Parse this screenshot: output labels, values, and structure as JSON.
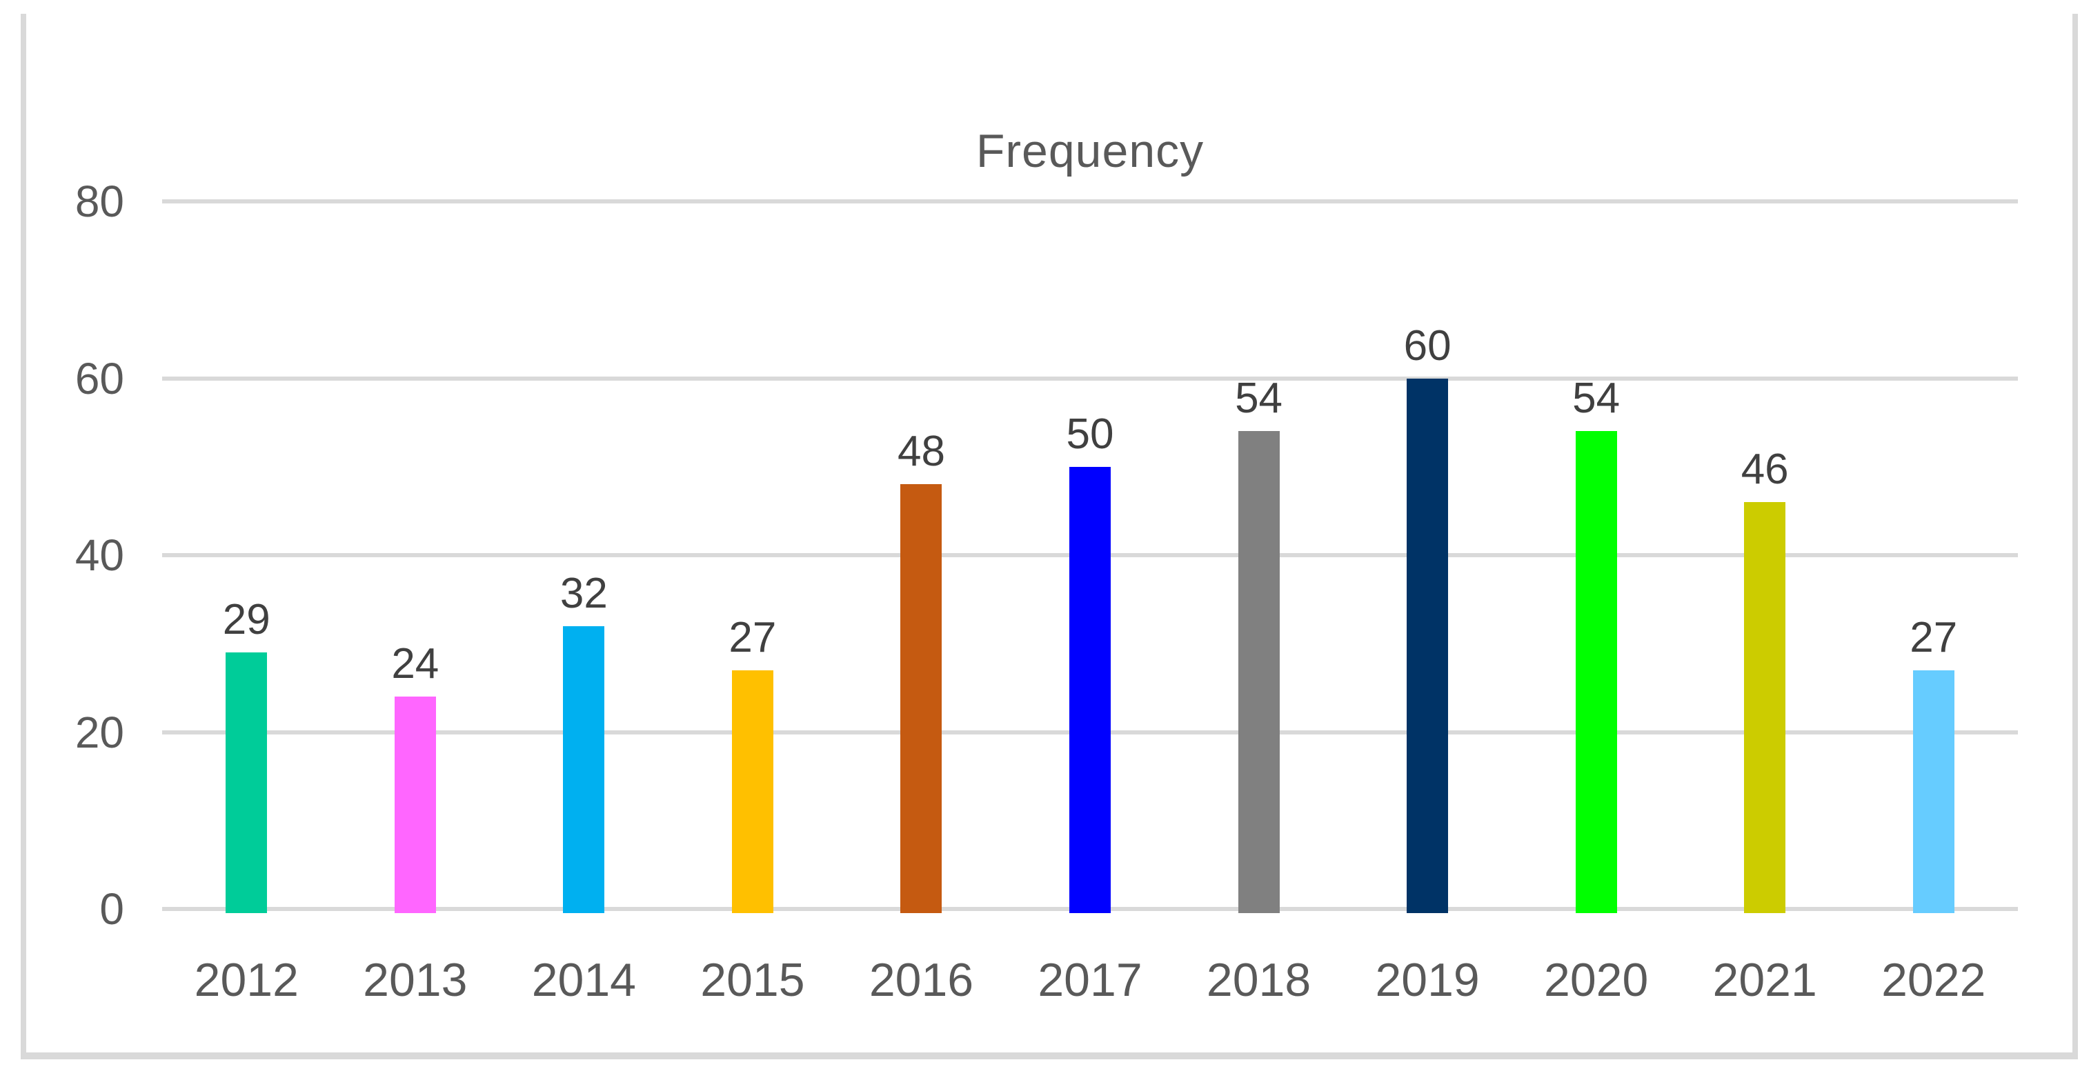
{
  "chart_data": {
    "type": "bar",
    "title": "Frequency",
    "categories": [
      "2012",
      "2013",
      "2014",
      "2015",
      "2016",
      "2017",
      "2018",
      "2019",
      "2020",
      "2021",
      "2022"
    ],
    "values": [
      29,
      24,
      32,
      27,
      48,
      50,
      54,
      60,
      54,
      46,
      27
    ],
    "bar_colors": [
      "#00CC99",
      "#FF66FF",
      "#00B0F0",
      "#FFC000",
      "#C55A11",
      "#0000FF",
      "#808080",
      "#003366",
      "#00FF00",
      "#CCCC00",
      "#66CCFF"
    ],
    "xlabel": "",
    "ylabel": "",
    "ylim": [
      0,
      80
    ],
    "yticks": [
      0,
      20,
      40,
      60,
      80
    ],
    "grid": true,
    "legend_position": "none",
    "data_labels": true
  },
  "style": {
    "grid_color": "#D9D9D9",
    "border_color": "#D9D9D9",
    "title_color": "#595959",
    "axis_label_color": "#595959",
    "data_label_color": "#404040",
    "background": "#FFFFFF"
  }
}
